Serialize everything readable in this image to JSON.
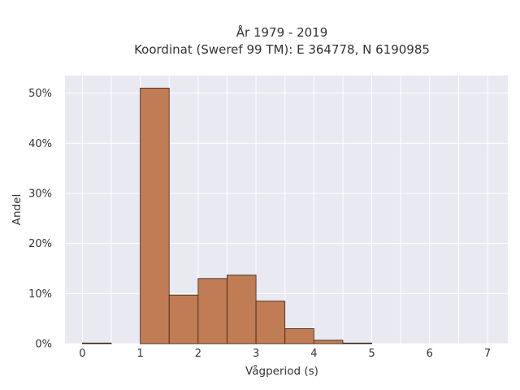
{
  "chart_data": {
    "type": "bar",
    "title_line1": "År 1979 - 2019",
    "title_line2": "Koordinat (Sweref 99 TM): E 364778, N 6190985",
    "xlabel": "Vågperiod (s)",
    "ylabel": "Andel",
    "xlim": [
      -0.3,
      7.35
    ],
    "ylim": [
      0,
      0.535
    ],
    "x_ticks": [
      0,
      1,
      2,
      3,
      4,
      5,
      6,
      7
    ],
    "y_ticks": [
      0,
      0.1,
      0.2,
      0.3,
      0.4,
      0.5
    ],
    "y_tick_labels": [
      "0%",
      "10%",
      "20%",
      "30%",
      "40%",
      "50%"
    ],
    "bin_width": 0.5,
    "bins": [
      {
        "x0": 0.0,
        "value": 0.001
      },
      {
        "x0": 0.5,
        "value": 0.0
      },
      {
        "x0": 1.0,
        "value": 0.51
      },
      {
        "x0": 1.5,
        "value": 0.097
      },
      {
        "x0": 2.0,
        "value": 0.13
      },
      {
        "x0": 2.5,
        "value": 0.137
      },
      {
        "x0": 3.0,
        "value": 0.085
      },
      {
        "x0": 3.5,
        "value": 0.03
      },
      {
        "x0": 4.0,
        "value": 0.007
      },
      {
        "x0": 4.5,
        "value": 0.001
      }
    ],
    "bar_color": "#c07c55",
    "bar_edge_color": "#3a2417",
    "plot_background": "#e9e9f1",
    "grid": true,
    "grid_color": "#ffffff"
  }
}
